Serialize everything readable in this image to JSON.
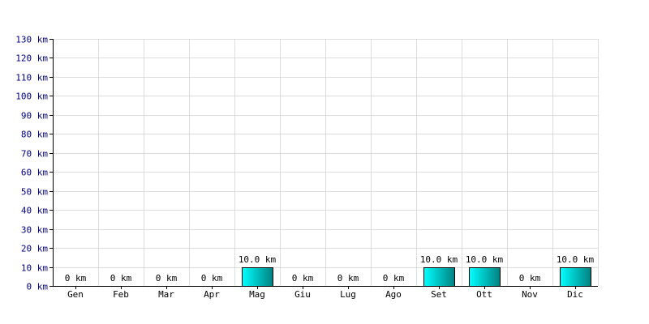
{
  "chart_data": {
    "type": "bar",
    "title": "",
    "xlabel": "",
    "ylabel": "",
    "categories": [
      "Gen",
      "Feb",
      "Mar",
      "Apr",
      "Mag",
      "Giu",
      "Lug",
      "Ago",
      "Set",
      "Ott",
      "Nov",
      "Dic"
    ],
    "values": [
      0,
      0,
      0,
      0,
      10,
      0,
      0,
      0,
      10,
      10,
      0,
      10
    ],
    "data_labels": [
      "0 km",
      "0 km",
      "0 km",
      "0 km",
      "10.0 km",
      "0 km",
      "0 km",
      "0 km",
      "10.0 km",
      "10.0 km",
      "0 km",
      "10.0 km"
    ],
    "y_ticks": [
      "0 km",
      "10 km",
      "20 km",
      "30 km",
      "40 km",
      "50 km",
      "60 km",
      "70 km",
      "80 km",
      "90 km",
      "100 km",
      "110 km",
      "120 km",
      "130 km"
    ],
    "ylim": [
      0,
      130
    ],
    "y_step": 10,
    "grid": true,
    "legend": "none",
    "colors": {
      "bar_light": "#00ffff",
      "bar_dark": "#008080",
      "bar_outline": "#000000",
      "grid": "#dddddd",
      "axis": "#000000",
      "y_tick_text": "#000080"
    }
  }
}
